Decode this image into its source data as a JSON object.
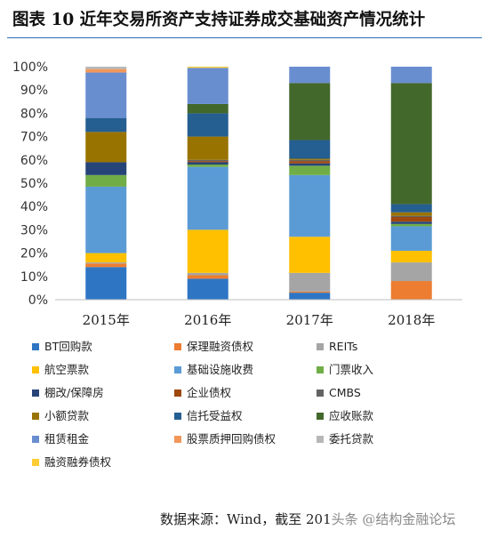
{
  "title": "图表 10 近年交易所资产支持证券成交基础资产情况统计",
  "source": {
    "text": "数据来源：Wind，截至 201",
    "watermark": "头条 @结构金融论坛"
  },
  "chart_data": {
    "type": "bar",
    "stacked": true,
    "title": "图表 10 近年交易所资产支持证券成交基础资产情况统计",
    "xlabel": "",
    "ylabel": "",
    "ylim": [
      0,
      100
    ],
    "y_ticks": [
      "0%",
      "10%",
      "20%",
      "30%",
      "40%",
      "50%",
      "60%",
      "70%",
      "80%",
      "90%",
      "100%"
    ],
    "grid": false,
    "legend_position": "bottom",
    "categories": [
      "2015年",
      "2016年",
      "2017年",
      "2018年"
    ],
    "series": [
      {
        "name": "BT回购款",
        "color": "#2e75c4",
        "values": [
          14,
          9,
          3,
          0
        ]
      },
      {
        "name": "保理融资债权",
        "color": "#ed7d31",
        "values": [
          1.5,
          1.5,
          0.5,
          8
        ]
      },
      {
        "name": "REITs",
        "color": "#a5a5a5",
        "values": [
          0.5,
          1,
          8,
          8
        ]
      },
      {
        "name": "航空票款",
        "color": "#ffc000",
        "values": [
          4,
          18.5,
          15.5,
          5
        ]
      },
      {
        "name": "基础设施收费",
        "color": "#5b9bd5",
        "values": [
          28.5,
          27,
          26.5,
          10.5
        ]
      },
      {
        "name": "门票收入",
        "color": "#70ad47",
        "values": [
          5,
          1,
          4,
          1
        ]
      },
      {
        "name": "棚改/保障房",
        "color": "#264478",
        "values": [
          5.5,
          1,
          1,
          1
        ]
      },
      {
        "name": "企业债权",
        "color": "#9e480e",
        "values": [
          0,
          0.5,
          1,
          2
        ]
      },
      {
        "name": "CMBS",
        "color": "#636363",
        "values": [
          0,
          0.5,
          0.5,
          0.5
        ]
      },
      {
        "name": "小额贷款",
        "color": "#997300",
        "values": [
          13,
          10,
          0.5,
          1.5
        ]
      },
      {
        "name": "信托受益权",
        "color": "#255e91",
        "values": [
          6,
          10,
          8,
          3.5
        ]
      },
      {
        "name": "应收账款",
        "color": "#43682b",
        "values": [
          0,
          4,
          24.5,
          52
        ]
      },
      {
        "name": "租赁租金",
        "color": "#698ed0",
        "values": [
          19.5,
          15.5,
          7,
          7
        ]
      },
      {
        "name": "股票质押回购债权",
        "color": "#f1975a",
        "values": [
          1.5,
          0,
          0,
          0
        ]
      },
      {
        "name": "委托贷款",
        "color": "#b7b7b7",
        "values": [
          1,
          0,
          0,
          0
        ]
      },
      {
        "name": "融资融券债权",
        "color": "#ffcd33",
        "values": [
          0,
          0.5,
          0,
          0
        ]
      }
    ]
  }
}
